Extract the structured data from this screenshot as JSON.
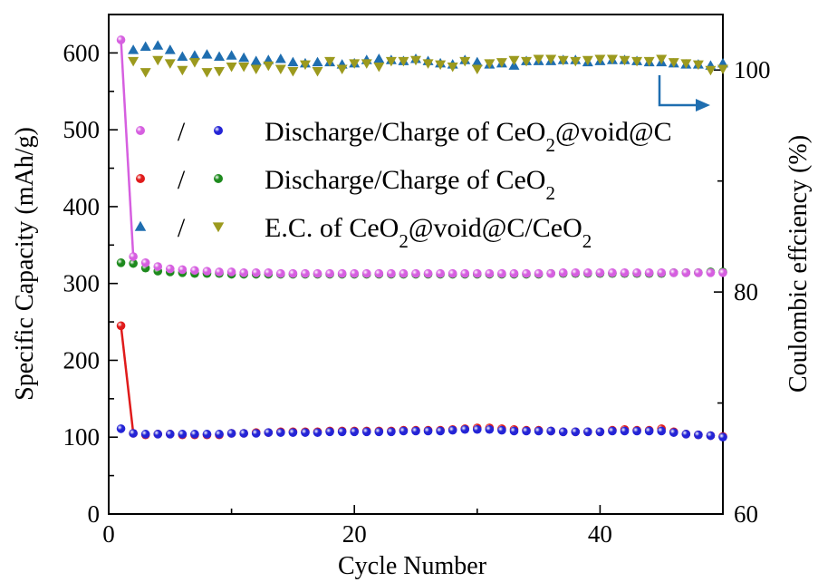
{
  "chart_data": {
    "type": "scatter",
    "xlabel": "Cycle Number",
    "ylabel_left": "Specific Capacity (mAh/g)",
    "ylabel_right": "Coulombic effciency (%)",
    "xlim": [
      0,
      50
    ],
    "ylim_left": [
      0,
      650
    ],
    "ylim_right": [
      60,
      105
    ],
    "x_ticks": [
      0,
      20,
      40
    ],
    "y_ticks_left": [
      0,
      100,
      200,
      300,
      400,
      500,
      600
    ],
    "y_ticks_right": [
      60,
      80,
      100
    ],
    "grid": false,
    "legend_position": "upper-middle",
    "legend": [
      {
        "left_marker": "Discharge of CeO2@void@C",
        "right_marker": "Charge of CeO2@void@C",
        "sep": "/",
        "text": "Discharge/Charge of CeO",
        "sub": "2",
        "text2": "@void@C",
        "sub2": "",
        "text3": ""
      },
      {
        "left_marker": "Discharge of CeO2",
        "right_marker": "Charge of CeO2",
        "sep": "/",
        "text": "Discharge/Charge of CeO",
        "sub": "2",
        "text2": "",
        "sub2": "",
        "text3": ""
      },
      {
        "left_marker": "E.C. of CeO2@void@C",
        "right_marker": "E.C. of CeO2",
        "sep": "/",
        "text": "E.C. of CeO",
        "sub": "2",
        "text2": "@void@C/CeO",
        "sub2": "2",
        "text3": ""
      }
    ],
    "series": [
      {
        "name": "Discharge of CeO2@void@C",
        "axis": "left",
        "marker": "circle",
        "color": "#d65fe0",
        "line": "first-two",
        "x": [
          1,
          2,
          3,
          4,
          5,
          6,
          7,
          8,
          9,
          10,
          11,
          12,
          13,
          14,
          15,
          16,
          17,
          18,
          19,
          20,
          21,
          22,
          23,
          24,
          25,
          26,
          27,
          28,
          29,
          30,
          31,
          32,
          33,
          34,
          35,
          36,
          37,
          38,
          39,
          40,
          41,
          42,
          43,
          44,
          45,
          46,
          47,
          48,
          49,
          50
        ],
        "y": [
          617,
          335,
          327,
          322,
          319,
          318,
          317,
          316,
          315,
          315,
          314,
          314,
          314,
          313,
          313,
          313,
          313,
          313,
          313,
          313,
          313,
          313,
          313,
          313,
          313,
          313,
          313,
          313,
          313,
          313,
          313,
          313,
          313,
          313,
          313,
          313,
          314,
          314,
          314,
          314,
          314,
          314,
          314,
          314,
          314,
          314,
          314,
          314,
          314,
          314
        ]
      },
      {
        "name": "Charge of CeO2@void@C",
        "axis": "left",
        "marker": "circle",
        "color": "#2424d6",
        "line": "none",
        "x": [
          1,
          2,
          3,
          4,
          5,
          6,
          7,
          8,
          9,
          10,
          11,
          12,
          13,
          14,
          15,
          16,
          17,
          18,
          19,
          20,
          21,
          22,
          23,
          24,
          25,
          26,
          27,
          28,
          29,
          30,
          31,
          32,
          33,
          34,
          35,
          36,
          37,
          38,
          39,
          40,
          41,
          42,
          43,
          44,
          45,
          46,
          47,
          48,
          49,
          50
        ],
        "y": [
          111,
          105,
          104,
          104,
          104,
          104,
          104,
          104,
          104,
          105,
          105,
          105,
          106,
          106,
          106,
          106,
          106,
          107,
          107,
          107,
          107,
          107,
          107,
          108,
          108,
          108,
          108,
          109,
          110,
          110,
          110,
          109,
          108,
          108,
          108,
          108,
          107,
          107,
          107,
          107,
          108,
          108,
          108,
          108,
          108,
          106,
          104,
          103,
          102,
          100
        ]
      },
      {
        "name": "Discharge of CeO2",
        "axis": "left",
        "marker": "circle",
        "color": "#e01b1b",
        "line": "first-two",
        "x": [
          1,
          2,
          3,
          4,
          5,
          6,
          7,
          8,
          9,
          10,
          11,
          12,
          13,
          14,
          15,
          16,
          17,
          18,
          19,
          20,
          21,
          22,
          23,
          24,
          25,
          26,
          27,
          28,
          29,
          30,
          31,
          32,
          33,
          34,
          35,
          36,
          37,
          38,
          39,
          40,
          41,
          42,
          43,
          44,
          45,
          46,
          47,
          48,
          49,
          50
        ],
        "y": [
          245,
          105,
          103,
          104,
          104,
          103,
          103,
          103,
          103,
          105,
          105,
          106,
          106,
          107,
          107,
          107,
          107,
          108,
          108,
          108,
          108,
          108,
          108,
          109,
          109,
          109,
          109,
          110,
          111,
          112,
          112,
          111,
          110,
          109,
          109,
          108,
          107,
          107,
          107,
          107,
          109,
          110,
          109,
          109,
          111,
          107,
          104,
          103,
          102,
          101
        ]
      },
      {
        "name": "Charge of CeO2",
        "axis": "left",
        "marker": "circle",
        "color": "#1e8a1e",
        "line": "none",
        "x": [
          1,
          2,
          3,
          4,
          5,
          6,
          7,
          8,
          9,
          10,
          11,
          12,
          13,
          14,
          15,
          16,
          17,
          18,
          19,
          20,
          21,
          22,
          23,
          24,
          25,
          26,
          27,
          28,
          29,
          30,
          31,
          32,
          33,
          34,
          35,
          36,
          37,
          38,
          39,
          40,
          41,
          42,
          43,
          44,
          45,
          46,
          47,
          48,
          49,
          50
        ],
        "y": [
          327,
          326,
          320,
          316,
          315,
          314,
          313,
          313,
          313,
          312,
          312,
          312,
          312,
          312,
          312,
          312,
          312,
          312,
          312,
          312,
          312,
          312,
          312,
          312,
          312,
          312,
          312,
          312,
          312,
          312,
          312,
          312,
          312,
          312,
          312,
          313,
          313,
          313,
          313,
          313,
          313,
          313,
          313,
          313,
          313,
          314,
          314,
          314,
          315,
          315
        ]
      },
      {
        "name": "E.C. of CeO2@void@C",
        "axis": "right",
        "marker": "triangle-up",
        "color": "#1f6eb0",
        "line": "none",
        "x": [
          2,
          3,
          4,
          5,
          6,
          7,
          8,
          9,
          10,
          11,
          12,
          13,
          14,
          15,
          16,
          17,
          18,
          19,
          20,
          21,
          22,
          23,
          24,
          25,
          26,
          27,
          28,
          29,
          30,
          31,
          32,
          33,
          34,
          35,
          36,
          37,
          38,
          39,
          40,
          41,
          42,
          43,
          44,
          45,
          46,
          47,
          48,
          49,
          50
        ],
        "y": [
          101.8,
          102.1,
          102.2,
          101.8,
          101.2,
          101.3,
          101.4,
          101.2,
          101.3,
          101.1,
          100.8,
          100.9,
          101.0,
          100.7,
          100.6,
          100.7,
          100.7,
          100.5,
          100.6,
          100.9,
          101.0,
          100.9,
          100.8,
          101.0,
          100.8,
          100.6,
          100.5,
          100.9,
          100.7,
          100.5,
          100.6,
          100.4,
          100.8,
          100.8,
          100.8,
          100.9,
          100.9,
          100.7,
          100.8,
          100.9,
          100.9,
          100.8,
          100.7,
          100.7,
          100.6,
          100.5,
          100.5,
          100.4,
          100.6
        ]
      },
      {
        "name": "E.C. of CeO2",
        "axis": "right",
        "marker": "triangle-down",
        "color": "#9c9a1e",
        "line": "none",
        "x": [
          2,
          3,
          4,
          5,
          6,
          7,
          8,
          9,
          10,
          11,
          12,
          13,
          14,
          15,
          16,
          17,
          18,
          19,
          20,
          21,
          22,
          23,
          24,
          25,
          26,
          27,
          28,
          29,
          30,
          31,
          32,
          33,
          34,
          35,
          36,
          37,
          38,
          39,
          40,
          41,
          42,
          43,
          44,
          45,
          46,
          47,
          48,
          49,
          50
        ],
        "y": [
          100.8,
          99.8,
          100.9,
          100.6,
          100.0,
          100.7,
          99.8,
          99.9,
          100.3,
          100.3,
          100.1,
          100.4,
          100.1,
          99.9,
          100.5,
          99.9,
          100.8,
          100.1,
          100.6,
          100.6,
          100.3,
          100.8,
          100.8,
          100.9,
          100.6,
          100.5,
          100.3,
          100.8,
          100.1,
          100.6,
          100.7,
          100.9,
          100.8,
          101.0,
          101.0,
          100.9,
          100.8,
          100.9,
          101.0,
          101.0,
          100.9,
          100.8,
          100.8,
          101.0,
          100.7,
          100.6,
          100.5,
          100.0,
          100.1
        ]
      }
    ],
    "annotation_arrow": {
      "direction": "right",
      "points_to_axis": "right",
      "color": "#1f6eb0"
    }
  }
}
